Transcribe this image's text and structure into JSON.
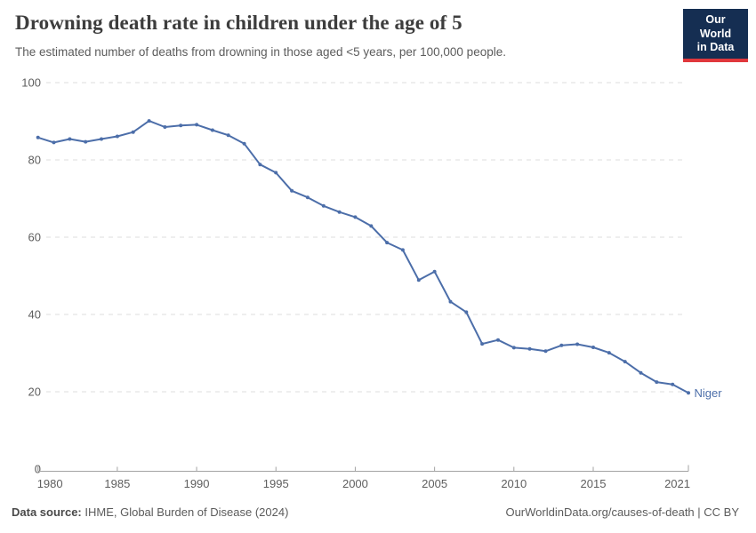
{
  "header": {
    "title": "Drowning death rate in children under the age of 5",
    "subtitle": "The estimated number of deaths from drowning in those aged <5 years, per 100,000 people.",
    "logo_line1": "Our World",
    "logo_line2": "in Data"
  },
  "chart_data": {
    "type": "line",
    "title": "Drowning death rate in children under the age of 5",
    "xlabel": "",
    "ylabel": "",
    "xlim": [
      1980,
      2021
    ],
    "ylim": [
      0,
      100
    ],
    "xticks": [
      1980,
      1985,
      1990,
      1995,
      2000,
      2005,
      2010,
      2015,
      2021
    ],
    "yticks": [
      0,
      20,
      40,
      60,
      80,
      100
    ],
    "grid": "horizontal-dashed",
    "legend_position": "end-of-line-label",
    "series": [
      {
        "name": "Niger",
        "x": [
          1980,
          1981,
          1982,
          1983,
          1984,
          1985,
          1986,
          1987,
          1988,
          1989,
          1990,
          1991,
          1992,
          1993,
          1994,
          1995,
          1996,
          1997,
          1998,
          1999,
          2000,
          2001,
          2002,
          2003,
          2004,
          2005,
          2006,
          2007,
          2008,
          2009,
          2010,
          2011,
          2012,
          2013,
          2014,
          2015,
          2016,
          2017,
          2018,
          2019,
          2020,
          2021
        ],
        "values": [
          85.8,
          84.5,
          85.4,
          84.7,
          85.4,
          86.1,
          87.2,
          90.1,
          88.5,
          88.9,
          89.1,
          87.7,
          86.4,
          84.2,
          78.8,
          76.7,
          72.0,
          70.3,
          68.1,
          66.5,
          65.2,
          62.9,
          58.6,
          56.7,
          48.9,
          51.1,
          43.3,
          40.6,
          32.4,
          33.4,
          31.4,
          31.1,
          30.5,
          32.0,
          32.3,
          31.5,
          30.1,
          27.8,
          24.9,
          22.5,
          21.9,
          19.7
        ]
      }
    ]
  },
  "footer": {
    "source_label": "Data source:",
    "source_text": " IHME, Global Burden of Disease (2024)",
    "credit": "OurWorldinData.org/causes-of-death | CC BY"
  },
  "colors": {
    "line": "#4C6EA9",
    "grid": "#dcdcdc",
    "axis": "#a3a3a3",
    "tick_text": "#5e5e5e",
    "title_text": "#3d3d3d",
    "logo_bg": "#152e52",
    "logo_accent": "#e0373c"
  }
}
